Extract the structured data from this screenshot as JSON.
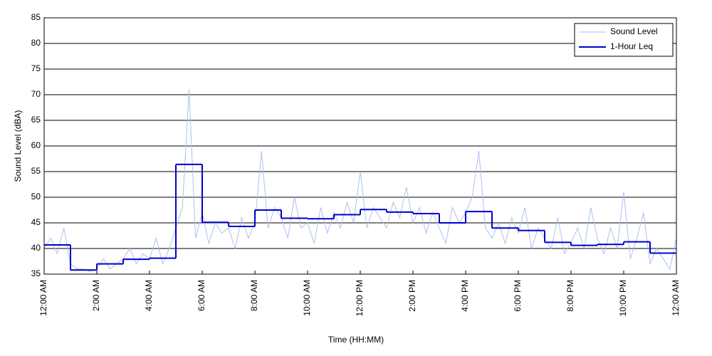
{
  "chart_data": {
    "type": "line",
    "x_label": "Time (HH:MM)",
    "y_label": "Sound Level (dBA)",
    "xlim": [
      0,
      24
    ],
    "xticks": [
      {
        "value": 0,
        "label": "12:00 AM"
      },
      {
        "value": 2,
        "label": "2:00 AM"
      },
      {
        "value": 4,
        "label": "4:00 AM"
      },
      {
        "value": 6,
        "label": "6:00 AM"
      },
      {
        "value": 8,
        "label": "8:00 AM"
      },
      {
        "value": 10,
        "label": "10:00 AM"
      },
      {
        "value": 12,
        "label": "12:00 PM"
      },
      {
        "value": 14,
        "label": "2:00 PM"
      },
      {
        "value": 16,
        "label": "4:00 PM"
      },
      {
        "value": 18,
        "label": "6:00 PM"
      },
      {
        "value": 20,
        "label": "8:00 PM"
      },
      {
        "value": 22,
        "label": "10:00 PM"
      },
      {
        "value": 24,
        "label": "12:00 AM"
      }
    ],
    "ylim": [
      35,
      85
    ],
    "yticks": [
      35,
      40,
      45,
      50,
      55,
      60,
      65,
      70,
      75,
      80,
      85
    ],
    "grid": true,
    "legend": "upper right",
    "series": [
      {
        "name": "Sound Level",
        "color": "#a9c1f2",
        "x": [
          0,
          0.25,
          0.5,
          0.75,
          1,
          1.25,
          1.5,
          1.75,
          2,
          2.25,
          2.5,
          2.75,
          3,
          3.25,
          3.5,
          3.75,
          4,
          4.25,
          4.5,
          4.75,
          5,
          5.25,
          5.5,
          5.75,
          6,
          6.25,
          6.5,
          6.75,
          7,
          7.25,
          7.5,
          7.75,
          8,
          8.25,
          8.5,
          8.75,
          9,
          9.25,
          9.5,
          9.75,
          10,
          10.25,
          10.5,
          10.75,
          11,
          11.25,
          11.5,
          11.75,
          12,
          12.25,
          12.5,
          12.75,
          13,
          13.25,
          13.5,
          13.75,
          14,
          14.25,
          14.5,
          14.75,
          15,
          15.25,
          15.5,
          15.75,
          16,
          16.25,
          16.5,
          16.75,
          17,
          17.25,
          17.5,
          17.75,
          18,
          18.25,
          18.5,
          18.75,
          19,
          19.25,
          19.5,
          19.75,
          20,
          20.25,
          20.5,
          20.75,
          21,
          21.25,
          21.5,
          21.75,
          22,
          22.25,
          22.5,
          22.75,
          23,
          23.25,
          23.5,
          23.75,
          24
        ],
        "values": [
          40,
          42,
          39,
          44,
          37,
          36,
          36,
          35.5,
          36,
          38,
          36,
          37,
          38,
          40,
          37,
          39,
          38,
          42,
          37,
          40,
          44,
          48,
          71,
          42,
          47,
          41,
          45,
          43,
          44,
          40,
          46,
          42,
          45,
          59,
          44,
          48,
          46,
          42,
          50,
          44,
          45,
          41,
          48,
          43,
          47,
          44,
          49,
          45,
          55,
          44,
          48,
          46,
          44,
          49,
          46,
          52,
          45,
          48,
          43,
          47,
          44,
          41,
          48,
          45,
          47,
          50,
          59,
          44,
          42,
          45,
          41,
          46,
          43,
          48,
          40,
          44,
          42,
          40,
          46,
          39,
          41,
          44,
          40,
          48,
          42,
          39,
          44,
          40,
          51,
          38,
          42,
          47,
          37,
          40,
          38,
          36,
          42
        ]
      },
      {
        "name": "1-Hour Leq",
        "color": "#0000cc",
        "step": "post",
        "x": [
          0,
          1,
          2,
          3,
          4,
          5,
          6,
          7,
          8,
          9,
          10,
          11,
          12,
          13,
          14,
          15,
          16,
          17,
          18,
          19,
          20,
          21,
          22,
          23
        ],
        "values": [
          40.7,
          35.8,
          37.0,
          37.9,
          38.1,
          56.4,
          45.1,
          44.3,
          47.5,
          45.9,
          45.8,
          46.6,
          47.6,
          47.1,
          46.8,
          45.0,
          47.2,
          44.0,
          43.5,
          41.2,
          40.6,
          40.8,
          41.3,
          39.1
        ]
      }
    ]
  }
}
